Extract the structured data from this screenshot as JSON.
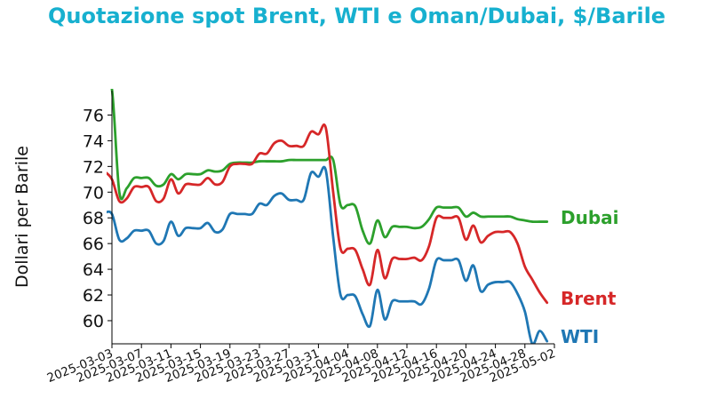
{
  "chart_data": {
    "type": "line",
    "title": "Quotazione spot Brent, WTI e Oman/Dubai, $/Barile",
    "xlabel": "",
    "ylabel": "Dollari per Barile",
    "xlim": [
      "2025-03-03",
      "2025-05-02"
    ],
    "ylim": [
      58.2,
      77.9
    ],
    "x_ticks": [
      "2025-03-03",
      "2025-03-07",
      "2025-03-11",
      "2025-03-15",
      "2025-03-19",
      "2025-03-23",
      "2025-03-27",
      "2025-03-31",
      "2025-04-04",
      "2025-04-08",
      "2025-04-12",
      "2025-04-16",
      "2025-04-20",
      "2025-04-24",
      "2025-04-28",
      "2025-05-02"
    ],
    "y_ticks": [
      60,
      62,
      64,
      66,
      68,
      70,
      72,
      74,
      76
    ],
    "grid": false,
    "legend": "inline labels at right end of each line",
    "series": [
      {
        "name": "Dubai",
        "color": "#2ca02c",
        "points": [
          [
            "2025-03-02",
            78.0
          ],
          [
            "2025-03-03",
            78.0
          ],
          [
            "2025-03-04",
            70.0
          ],
          [
            "2025-03-05",
            70.3
          ],
          [
            "2025-03-06",
            71.1
          ],
          [
            "2025-03-07",
            71.1
          ],
          [
            "2025-03-08",
            71.1
          ],
          [
            "2025-03-09",
            70.5
          ],
          [
            "2025-03-10",
            70.6
          ],
          [
            "2025-03-11",
            71.4
          ],
          [
            "2025-03-12",
            71.0
          ],
          [
            "2025-03-13",
            71.4
          ],
          [
            "2025-03-14",
            71.4
          ],
          [
            "2025-03-15",
            71.4
          ],
          [
            "2025-03-16",
            71.7
          ],
          [
            "2025-03-17",
            71.6
          ],
          [
            "2025-03-18",
            71.7
          ],
          [
            "2025-03-19",
            72.2
          ],
          [
            "2025-03-20",
            72.3
          ],
          [
            "2025-03-21",
            72.3
          ],
          [
            "2025-03-22",
            72.3
          ],
          [
            "2025-03-23",
            72.4
          ],
          [
            "2025-03-24",
            72.4
          ],
          [
            "2025-03-25",
            72.4
          ],
          [
            "2025-03-26",
            72.4
          ],
          [
            "2025-03-27",
            72.5
          ],
          [
            "2025-03-28",
            72.5
          ],
          [
            "2025-03-29",
            72.5
          ],
          [
            "2025-03-30",
            72.5
          ],
          [
            "2025-03-31",
            72.5
          ],
          [
            "2025-04-01",
            72.5
          ],
          [
            "2025-04-02",
            72.5
          ],
          [
            "2025-04-03",
            69.0
          ],
          [
            "2025-04-04",
            69.0
          ],
          [
            "2025-04-05",
            68.9
          ],
          [
            "2025-04-06",
            67.0
          ],
          [
            "2025-04-07",
            66.0
          ],
          [
            "2025-04-08",
            67.8
          ],
          [
            "2025-04-09",
            66.5
          ],
          [
            "2025-04-10",
            67.3
          ],
          [
            "2025-04-11",
            67.3
          ],
          [
            "2025-04-12",
            67.3
          ],
          [
            "2025-04-13",
            67.2
          ],
          [
            "2025-04-14",
            67.3
          ],
          [
            "2025-04-15",
            67.9
          ],
          [
            "2025-04-16",
            68.8
          ],
          [
            "2025-04-17",
            68.8
          ],
          [
            "2025-04-18",
            68.8
          ],
          [
            "2025-04-19",
            68.8
          ],
          [
            "2025-04-20",
            68.1
          ],
          [
            "2025-04-21",
            68.4
          ],
          [
            "2025-04-22",
            68.1
          ],
          [
            "2025-04-23",
            68.1
          ],
          [
            "2025-04-24",
            68.1
          ],
          [
            "2025-04-25",
            68.1
          ],
          [
            "2025-04-26",
            68.1
          ],
          [
            "2025-04-27",
            67.9
          ],
          [
            "2025-04-28",
            67.8
          ],
          [
            "2025-04-29",
            67.7
          ],
          [
            "2025-04-30",
            67.7
          ],
          [
            "2025-05-01",
            67.7
          ]
        ]
      },
      {
        "name": "Brent",
        "color": "#d62728",
        "points": [
          [
            "2025-03-02",
            71.6
          ],
          [
            "2025-03-03",
            71.0
          ],
          [
            "2025-03-04",
            69.3
          ],
          [
            "2025-03-05",
            69.5
          ],
          [
            "2025-03-06",
            70.4
          ],
          [
            "2025-03-07",
            70.4
          ],
          [
            "2025-03-08",
            70.4
          ],
          [
            "2025-03-09",
            69.3
          ],
          [
            "2025-03-10",
            69.5
          ],
          [
            "2025-03-11",
            71.0
          ],
          [
            "2025-03-12",
            69.9
          ],
          [
            "2025-03-13",
            70.6
          ],
          [
            "2025-03-14",
            70.6
          ],
          [
            "2025-03-15",
            70.6
          ],
          [
            "2025-03-16",
            71.1
          ],
          [
            "2025-03-17",
            70.6
          ],
          [
            "2025-03-18",
            70.8
          ],
          [
            "2025-03-19",
            72.0
          ],
          [
            "2025-03-20",
            72.2
          ],
          [
            "2025-03-21",
            72.2
          ],
          [
            "2025-03-22",
            72.2
          ],
          [
            "2025-03-23",
            73.0
          ],
          [
            "2025-03-24",
            73.0
          ],
          [
            "2025-03-25",
            73.8
          ],
          [
            "2025-03-26",
            74.0
          ],
          [
            "2025-03-27",
            73.6
          ],
          [
            "2025-03-28",
            73.6
          ],
          [
            "2025-03-29",
            73.6
          ],
          [
            "2025-03-30",
            74.7
          ],
          [
            "2025-03-31",
            74.5
          ],
          [
            "2025-04-01",
            75.0
          ],
          [
            "2025-04-02",
            70.0
          ],
          [
            "2025-04-03",
            65.6
          ],
          [
            "2025-04-04",
            65.6
          ],
          [
            "2025-04-05",
            65.5
          ],
          [
            "2025-04-06",
            64.0
          ],
          [
            "2025-04-07",
            62.8
          ],
          [
            "2025-04-08",
            65.5
          ],
          [
            "2025-04-09",
            63.3
          ],
          [
            "2025-04-10",
            64.8
          ],
          [
            "2025-04-11",
            64.8
          ],
          [
            "2025-04-12",
            64.8
          ],
          [
            "2025-04-13",
            64.9
          ],
          [
            "2025-04-14",
            64.7
          ],
          [
            "2025-04-15",
            65.8
          ],
          [
            "2025-04-16",
            68.0
          ],
          [
            "2025-04-17",
            68.0
          ],
          [
            "2025-04-18",
            68.0
          ],
          [
            "2025-04-19",
            68.0
          ],
          [
            "2025-04-20",
            66.3
          ],
          [
            "2025-04-21",
            67.4
          ],
          [
            "2025-04-22",
            66.1
          ],
          [
            "2025-04-23",
            66.6
          ],
          [
            "2025-04-24",
            66.9
          ],
          [
            "2025-04-25",
            66.9
          ],
          [
            "2025-04-26",
            66.9
          ],
          [
            "2025-04-27",
            66.0
          ],
          [
            "2025-04-28",
            64.2
          ],
          [
            "2025-04-29",
            63.2
          ],
          [
            "2025-04-30",
            62.2
          ],
          [
            "2025-05-01",
            61.4
          ]
        ]
      },
      {
        "name": "WTI",
        "color": "#1f77b4",
        "points": [
          [
            "2025-03-02",
            68.4
          ],
          [
            "2025-03-03",
            68.3
          ],
          [
            "2025-03-04",
            66.3
          ],
          [
            "2025-03-05",
            66.4
          ],
          [
            "2025-03-06",
            67.0
          ],
          [
            "2025-03-07",
            67.0
          ],
          [
            "2025-03-08",
            67.0
          ],
          [
            "2025-03-09",
            66.0
          ],
          [
            "2025-03-10",
            66.2
          ],
          [
            "2025-03-11",
            67.7
          ],
          [
            "2025-03-12",
            66.6
          ],
          [
            "2025-03-13",
            67.2
          ],
          [
            "2025-03-14",
            67.2
          ],
          [
            "2025-03-15",
            67.2
          ],
          [
            "2025-03-16",
            67.6
          ],
          [
            "2025-03-17",
            66.9
          ],
          [
            "2025-03-18",
            67.1
          ],
          [
            "2025-03-19",
            68.3
          ],
          [
            "2025-03-20",
            68.3
          ],
          [
            "2025-03-21",
            68.3
          ],
          [
            "2025-03-22",
            68.3
          ],
          [
            "2025-03-23",
            69.1
          ],
          [
            "2025-03-24",
            69.0
          ],
          [
            "2025-03-25",
            69.7
          ],
          [
            "2025-03-26",
            69.9
          ],
          [
            "2025-03-27",
            69.4
          ],
          [
            "2025-03-28",
            69.4
          ],
          [
            "2025-03-29",
            69.4
          ],
          [
            "2025-03-30",
            71.5
          ],
          [
            "2025-03-31",
            71.2
          ],
          [
            "2025-04-01",
            71.7
          ],
          [
            "2025-04-02",
            66.5
          ],
          [
            "2025-04-03",
            62.0
          ],
          [
            "2025-04-04",
            62.0
          ],
          [
            "2025-04-05",
            61.9
          ],
          [
            "2025-04-06",
            60.5
          ],
          [
            "2025-04-07",
            59.6
          ],
          [
            "2025-04-08",
            62.4
          ],
          [
            "2025-04-09",
            60.1
          ],
          [
            "2025-04-10",
            61.5
          ],
          [
            "2025-04-11",
            61.5
          ],
          [
            "2025-04-12",
            61.5
          ],
          [
            "2025-04-13",
            61.5
          ],
          [
            "2025-04-14",
            61.3
          ],
          [
            "2025-04-15",
            62.5
          ],
          [
            "2025-04-16",
            64.7
          ],
          [
            "2025-04-17",
            64.7
          ],
          [
            "2025-04-18",
            64.7
          ],
          [
            "2025-04-19",
            64.7
          ],
          [
            "2025-04-20",
            63.1
          ],
          [
            "2025-04-21",
            64.3
          ],
          [
            "2025-04-22",
            62.3
          ],
          [
            "2025-04-23",
            62.8
          ],
          [
            "2025-04-24",
            63.0
          ],
          [
            "2025-04-25",
            63.0
          ],
          [
            "2025-04-26",
            63.0
          ],
          [
            "2025-04-27",
            62.1
          ],
          [
            "2025-04-28",
            60.7
          ],
          [
            "2025-04-29",
            58.2
          ],
          [
            "2025-04-30",
            59.2
          ],
          [
            "2025-05-01",
            58.4
          ]
        ]
      }
    ]
  }
}
